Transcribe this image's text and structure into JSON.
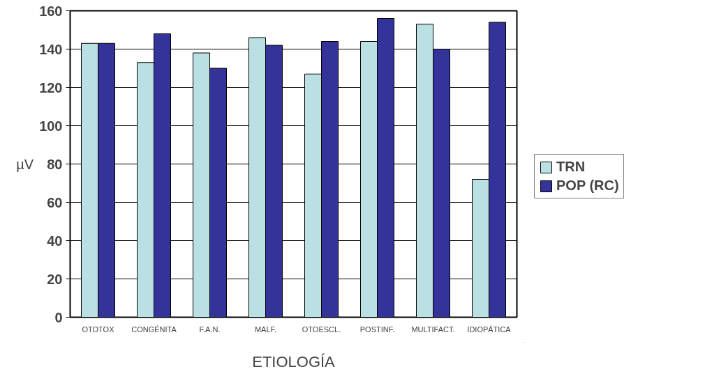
{
  "chart_data": {
    "type": "bar",
    "xlabel": "ETIOLOGÍA",
    "ylabel": "µV",
    "categories": [
      "OTOTOX",
      "CONGÉNITA",
      "F.A.N.",
      "MALF.",
      "OTOESCL.",
      "POSTINF.",
      "MULTIFACT.",
      "IDIOPÁTICA"
    ],
    "series": [
      {
        "name": "TRN",
        "color": "#bbe0e3",
        "values": [
          143,
          133,
          138,
          146,
          127,
          144,
          153,
          72
        ]
      },
      {
        "name": "POP (RC)",
        "color": "#333399",
        "values": [
          143,
          148,
          130,
          142,
          144,
          156,
          140,
          154
        ]
      }
    ],
    "ylim": [
      0,
      160
    ],
    "yticks": [
      0,
      20,
      40,
      60,
      80,
      100,
      120,
      140,
      160
    ],
    "grid": "y",
    "legend": "right"
  }
}
